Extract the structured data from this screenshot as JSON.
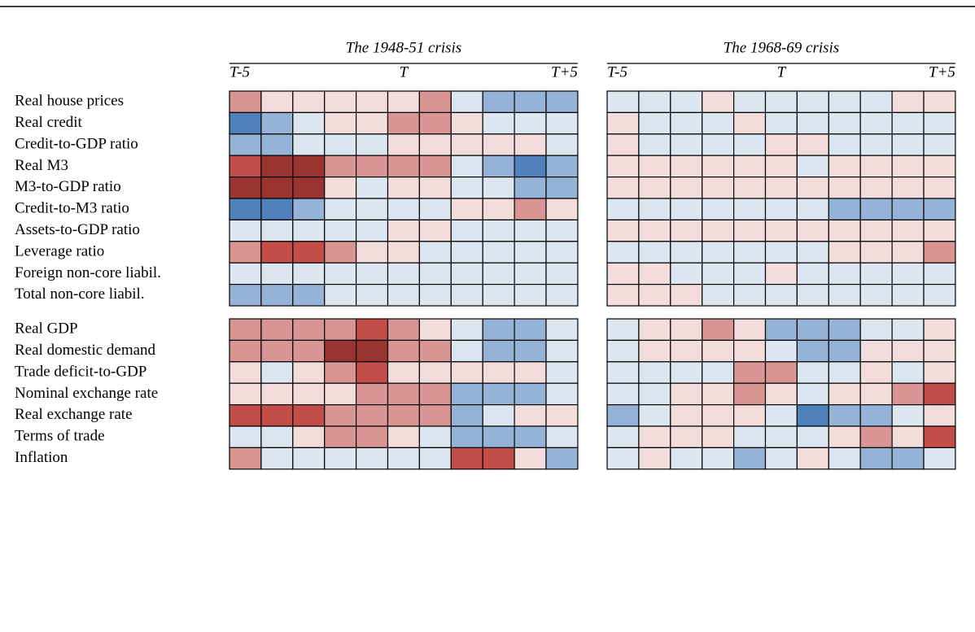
{
  "chart_data": {
    "type": "heatmap",
    "row_groups": [
      [
        "Real house prices",
        "Real credit",
        "Credit-to-GDP ratio",
        "Real M3",
        "M3-to-GDP ratio",
        "Credit-to-M3 ratio",
        "Assets-to-GDP ratio",
        "Leverage ratio",
        "Foreign non-core liabil.",
        "Total non-core liabil."
      ],
      [
        "Real GDP",
        "Real domestic demand",
        "Trade deficit-to-GDP",
        "Nominal exchange rate",
        "Real exchange rate",
        "Terms of trade",
        "Inflation"
      ]
    ],
    "color_levels": [
      {
        "value": 4,
        "color": "#9a3431"
      },
      {
        "value": 3,
        "color": "#c24d49"
      },
      {
        "value": 2,
        "color": "#d99594"
      },
      {
        "value": 1,
        "color": "#f2dcdc"
      },
      {
        "value": -1,
        "color": "#dce6f1"
      },
      {
        "value": -2,
        "color": "#95b3d7"
      },
      {
        "value": -3,
        "color": "#4f81bd"
      }
    ],
    "panels": [
      {
        "title": "The 1948-51 crisis",
        "column_labels": [
          "T-5",
          "T",
          "T+5"
        ],
        "groups": [
          [
            [
              2,
              1,
              1,
              1,
              1,
              1,
              2,
              -1,
              -2,
              -2,
              -2
            ],
            [
              -3,
              -2,
              -1,
              1,
              1,
              2,
              2,
              1,
              -1,
              -1,
              -1
            ],
            [
              -2,
              -2,
              -1,
              -1,
              -1,
              1,
              1,
              1,
              1,
              1,
              -1
            ],
            [
              3,
              4,
              4,
              2,
              2,
              2,
              2,
              -1,
              -2,
              -3,
              -2
            ],
            [
              4,
              4,
              4,
              1,
              -1,
              1,
              1,
              -1,
              -1,
              -2,
              -2
            ],
            [
              -3,
              -3,
              -2,
              -1,
              -1,
              -1,
              -1,
              1,
              1,
              2,
              1
            ],
            [
              -1,
              -1,
              -1,
              -1,
              -1,
              1,
              1,
              -1,
              -1,
              -1,
              -1
            ],
            [
              2,
              3,
              3,
              2,
              1,
              1,
              -1,
              -1,
              -1,
              -1,
              -1
            ],
            [
              -1,
              -1,
              -1,
              -1,
              -1,
              -1,
              -1,
              -1,
              -1,
              -1,
              -1
            ],
            [
              -2,
              -2,
              -2,
              -1,
              -1,
              -1,
              -1,
              -1,
              -1,
              -1,
              -1
            ]
          ],
          [
            [
              2,
              2,
              2,
              2,
              3,
              2,
              1,
              -1,
              -2,
              -2,
              -1
            ],
            [
              2,
              2,
              2,
              4,
              4,
              2,
              2,
              -1,
              -2,
              -2,
              -1
            ],
            [
              1,
              -1,
              1,
              2,
              3,
              1,
              1,
              1,
              1,
              1,
              -1
            ],
            [
              1,
              1,
              1,
              1,
              2,
              2,
              2,
              -2,
              -2,
              -2,
              -1
            ],
            [
              3,
              3,
              3,
              2,
              2,
              2,
              2,
              -2,
              -1,
              1,
              1
            ],
            [
              -1,
              -1,
              1,
              2,
              2,
              1,
              -1,
              -2,
              -2,
              -2,
              -1
            ],
            [
              2,
              -1,
              -1,
              -1,
              -1,
              -1,
              -1,
              3,
              3,
              1,
              -2
            ]
          ]
        ]
      },
      {
        "title": "The 1968-69 crisis",
        "column_labels": [
          "T-5",
          "T",
          "T+5"
        ],
        "groups": [
          [
            [
              -1,
              -1,
              -1,
              1,
              -1,
              -1,
              -1,
              -1,
              -1,
              1,
              1
            ],
            [
              1,
              -1,
              -1,
              -1,
              1,
              -1,
              -1,
              -1,
              -1,
              -1,
              -1
            ],
            [
              1,
              -1,
              -1,
              -1,
              -1,
              1,
              1,
              -1,
              -1,
              -1,
              -1
            ],
            [
              1,
              1,
              1,
              1,
              1,
              1,
              -1,
              1,
              1,
              1,
              1
            ],
            [
              1,
              1,
              1,
              1,
              1,
              1,
              1,
              1,
              1,
              1,
              1
            ],
            [
              -1,
              -1,
              -1,
              -1,
              -1,
              -1,
              -1,
              -2,
              -2,
              -2,
              -2
            ],
            [
              1,
              1,
              1,
              1,
              1,
              1,
              1,
              1,
              1,
              1,
              1
            ],
            [
              -1,
              -1,
              -1,
              -1,
              -1,
              -1,
              -1,
              1,
              1,
              1,
              2
            ],
            [
              1,
              1,
              -1,
              -1,
              -1,
              1,
              -1,
              -1,
              -1,
              -1,
              -1
            ],
            [
              1,
              1,
              1,
              -1,
              -1,
              -1,
              -1,
              -1,
              -1,
              -1,
              -1
            ]
          ],
          [
            [
              -1,
              1,
              1,
              2,
              1,
              -2,
              -2,
              -2,
              -1,
              -1,
              1
            ],
            [
              -1,
              1,
              1,
              1,
              1,
              -1,
              -2,
              -2,
              1,
              1,
              1
            ],
            [
              -1,
              -1,
              -1,
              -1,
              2,
              2,
              -1,
              -1,
              1,
              -1,
              1
            ],
            [
              -1,
              -1,
              1,
              1,
              2,
              1,
              -1,
              1,
              1,
              2,
              3
            ],
            [
              -2,
              -1,
              1,
              1,
              1,
              -1,
              -3,
              -2,
              -2,
              -1,
              1
            ],
            [
              -1,
              1,
              1,
              1,
              -1,
              -1,
              -1,
              1,
              2,
              1,
              3
            ],
            [
              -1,
              1,
              -1,
              -1,
              -2,
              -1,
              1,
              -1,
              -2,
              -2,
              -1
            ]
          ]
        ]
      }
    ]
  }
}
